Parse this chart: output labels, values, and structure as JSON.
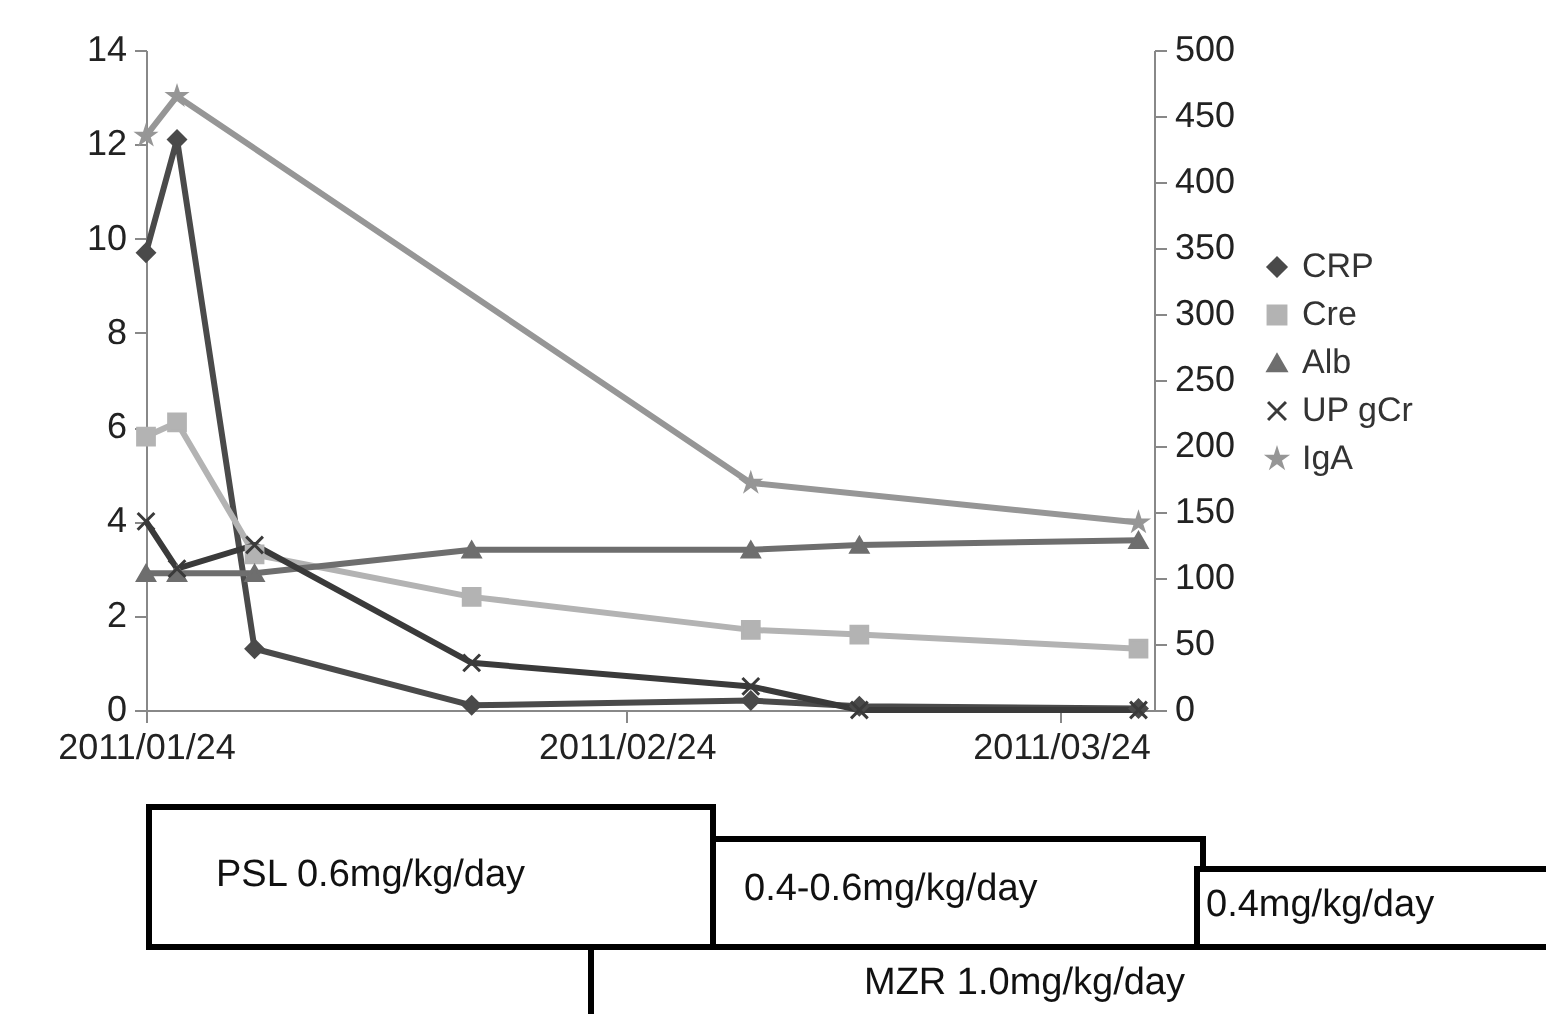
{
  "chart_data": {
    "type": "line",
    "x": [
      "2011-01-24",
      "2011-01-26",
      "2011-01-31",
      "2011-02-14",
      "2011-03-04",
      "2011-03-11",
      "2011-03-29"
    ],
    "series": [
      {
        "name": "CRP",
        "color": "#4a4a4a",
        "marker": "diamond",
        "values": [
          9.7,
          12.1,
          1.3,
          0.1,
          0.2,
          0.08,
          0.03
        ]
      },
      {
        "name": "Cre",
        "color": "#b3b3b3",
        "marker": "square",
        "values": [
          5.8,
          6.1,
          3.3,
          2.4,
          1.7,
          1.6,
          1.3
        ]
      },
      {
        "name": "Alb",
        "color": "#6e6e6e",
        "marker": "triangle",
        "values": [
          2.9,
          2.9,
          2.9,
          3.4,
          3.4,
          3.5,
          3.6
        ]
      },
      {
        "name": "UP gCr",
        "color": "#3a3a3a",
        "marker": "cross",
        "values": [
          4.0,
          3.0,
          3.5,
          1.0,
          0.5,
          0.0,
          0.0
        ]
      },
      {
        "name": "IgA",
        "color": "#969696",
        "marker": "star",
        "axis": "y2",
        "x": [
          "2011-01-24",
          "2011-01-26",
          "2011-03-04",
          "2011-03-29"
        ],
        "values": [
          435,
          465,
          172,
          142
        ]
      }
    ],
    "xlim": [
      "2011-01-24",
      "2011-03-30"
    ],
    "xticks": [
      {
        "value": "2011-01-24",
        "label": "2011/01/24"
      },
      {
        "value": "2011-02-24",
        "label": "2011/02/24"
      },
      {
        "value": "2011-03-24",
        "label": "2011/03/24"
      }
    ],
    "ylim": [
      0,
      14
    ],
    "yticks": [
      0,
      2,
      4,
      6,
      8,
      10,
      12,
      14
    ],
    "y2lim": [
      0,
      500
    ],
    "y2ticks": [
      0,
      50,
      100,
      150,
      200,
      250,
      300,
      350,
      400,
      450,
      500
    ],
    "grid": false,
    "legend": "right",
    "annotations": [
      "PSL 0.6mg/kg/day",
      "0.4-0.6mg/kg/day",
      "0.4mg/kg/day",
      "MZR 1.0mg/kg/day"
    ]
  }
}
